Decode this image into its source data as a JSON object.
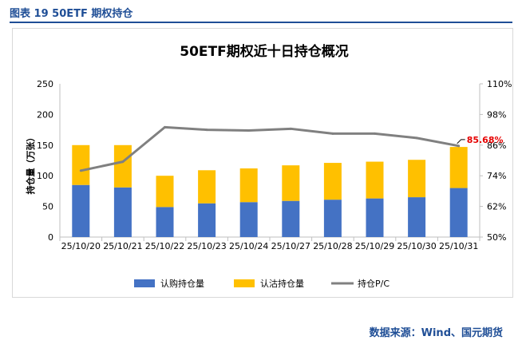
{
  "caption": "图表 19 50ETF 期权持仓",
  "source": "数据来源：Wind、国元期货",
  "chart_data": {
    "type": "bar",
    "title": "50ETF期权近十日持仓概况",
    "ylabel": "持仓量（万张）",
    "categories": [
      "25/10/20",
      "25/10/21",
      "25/10/22",
      "25/10/23",
      "25/10/24",
      "25/10/27",
      "25/10/28",
      "25/10/29",
      "25/10/30",
      "25/10/31"
    ],
    "series": [
      {
        "name": "认购持仓量",
        "type": "bar",
        "stack": "pos",
        "axis": "left",
        "color": "#4472c4",
        "values": [
          85,
          81,
          49,
          55,
          57,
          59,
          61,
          63,
          65,
          80
        ]
      },
      {
        "name": "认沽持仓量",
        "type": "bar",
        "stack": "pos",
        "axis": "left",
        "color": "#ffc000",
        "values": [
          65,
          69,
          51,
          54,
          55,
          58,
          60,
          60,
          61,
          67
        ]
      },
      {
        "name": "持仓P/C",
        "type": "line",
        "axis": "right",
        "color": "#808080",
        "values": [
          0.76,
          0.795,
          0.93,
          0.92,
          0.917,
          0.924,
          0.905,
          0.905,
          0.888,
          0.8568
        ]
      }
    ],
    "ylim": [
      0,
      250
    ],
    "yticks": [
      0,
      50,
      100,
      150,
      200,
      250
    ],
    "y2lim": [
      0.5,
      1.1
    ],
    "y2ticks": [
      "50%",
      "62%",
      "74%",
      "86%",
      "98%",
      "110%"
    ],
    "annotation": "85.68%",
    "grid": false,
    "legend": "bottom"
  }
}
